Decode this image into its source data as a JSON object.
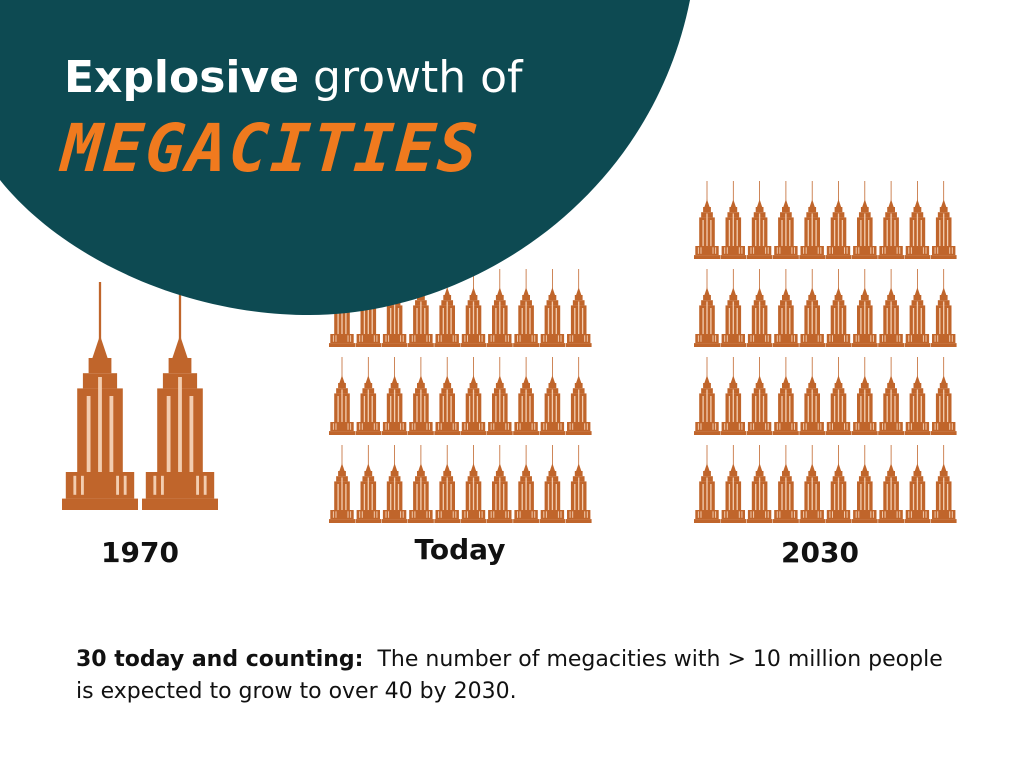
{
  "title": {
    "bold": "Explosive",
    "rest": "growth of",
    "highlight": "MEGACITIES"
  },
  "groups": [
    {
      "label": "1970",
      "count": 2
    },
    {
      "label": "Today",
      "count": 30
    },
    {
      "label": "2030",
      "count": 40
    }
  ],
  "footer": {
    "lead": "30 today and counting:",
    "text": "The number of megacities with > 10 million people is expected to grow to over 40 by 2030."
  }
}
